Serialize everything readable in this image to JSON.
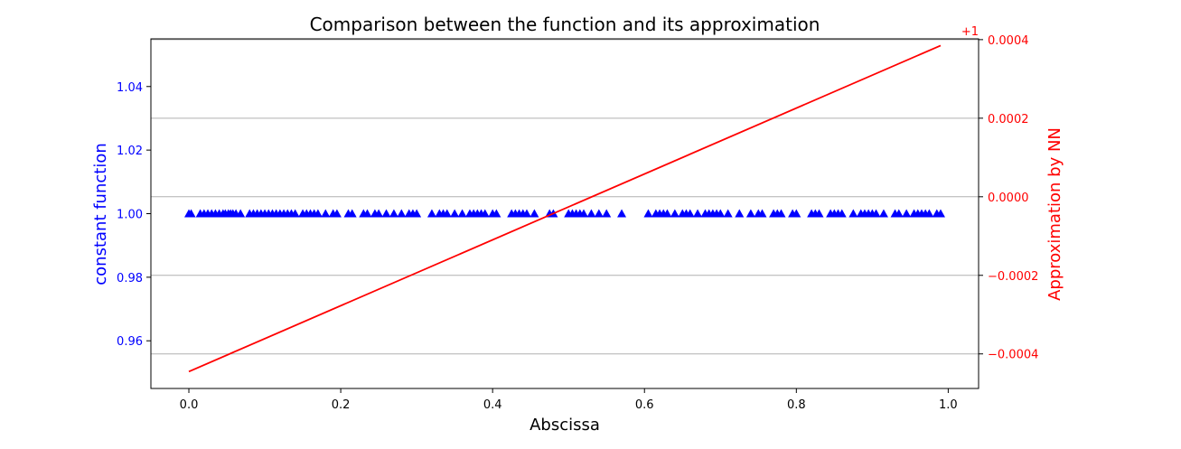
{
  "chart_data": {
    "type": "scatter+line",
    "title": "Comparison between the function and its approximation",
    "xlabel": "Abscissa",
    "xlim": [
      -0.05,
      1.04
    ],
    "xticks": [
      "0.0",
      "0.2",
      "0.4",
      "0.6",
      "0.8",
      "1.0"
    ],
    "left_axis": {
      "label": "constant function",
      "color": "#0000ff",
      "ylim": [
        0.945,
        1.055
      ],
      "ticks": [
        "0.96",
        "0.98",
        "1.00",
        "1.02",
        "1.04"
      ]
    },
    "right_axis": {
      "label": "Approximation by NN",
      "color": "#ff0000",
      "offset_text": "+1",
      "ylim": [
        -0.000488,
        0.000402
      ],
      "ticks": [
        "−0.0004",
        "−0.0002",
        "0.0000",
        "0.0002",
        "0.0004"
      ],
      "grid": true
    },
    "series": [
      {
        "axis": "left",
        "marker": "triangle",
        "color": "#0000ff",
        "y": 1.0,
        "x": [
          0.0,
          0.003,
          0.015,
          0.02,
          0.025,
          0.03,
          0.035,
          0.04,
          0.045,
          0.048,
          0.052,
          0.055,
          0.058,
          0.062,
          0.068,
          0.08,
          0.085,
          0.09,
          0.095,
          0.1,
          0.105,
          0.11,
          0.115,
          0.12,
          0.125,
          0.13,
          0.135,
          0.14,
          0.15,
          0.155,
          0.16,
          0.165,
          0.17,
          0.18,
          0.19,
          0.195,
          0.21,
          0.215,
          0.23,
          0.235,
          0.245,
          0.25,
          0.26,
          0.27,
          0.28,
          0.29,
          0.295,
          0.3,
          0.32,
          0.33,
          0.335,
          0.34,
          0.35,
          0.36,
          0.37,
          0.375,
          0.38,
          0.385,
          0.39,
          0.4,
          0.405,
          0.425,
          0.43,
          0.435,
          0.44,
          0.445,
          0.455,
          0.475,
          0.48,
          0.5,
          0.505,
          0.51,
          0.515,
          0.52,
          0.53,
          0.54,
          0.55,
          0.57,
          0.605,
          0.615,
          0.62,
          0.625,
          0.63,
          0.64,
          0.65,
          0.655,
          0.66,
          0.67,
          0.68,
          0.685,
          0.69,
          0.695,
          0.7,
          0.71,
          0.725,
          0.74,
          0.75,
          0.755,
          0.77,
          0.775,
          0.78,
          0.795,
          0.8,
          0.82,
          0.825,
          0.83,
          0.845,
          0.85,
          0.855,
          0.86,
          0.875,
          0.885,
          0.89,
          0.895,
          0.9,
          0.905,
          0.915,
          0.93,
          0.935,
          0.945,
          0.955,
          0.96,
          0.965,
          0.97,
          0.975,
          0.985,
          0.99
        ]
      },
      {
        "axis": "right",
        "type": "line",
        "color": "#ff0000",
        "x": [
          0.0,
          0.99
        ],
        "y": [
          -0.000445,
          0.000385
        ]
      }
    ]
  }
}
